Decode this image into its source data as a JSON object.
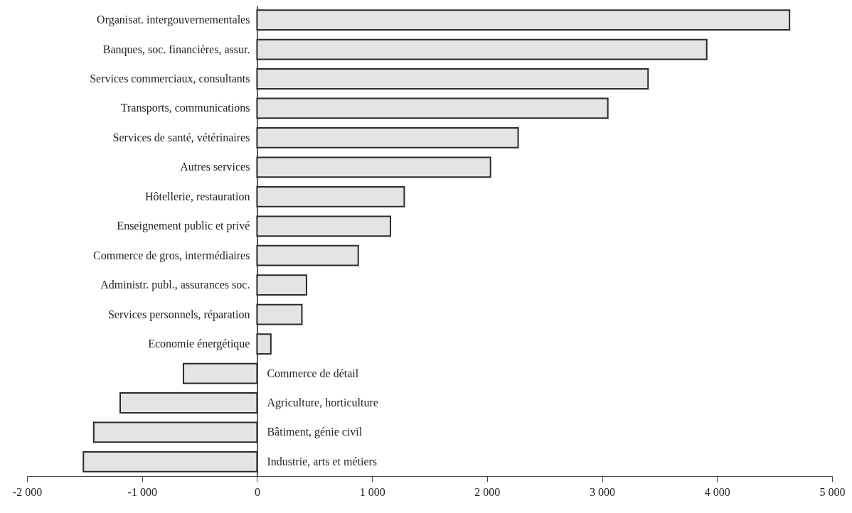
{
  "chart_data": {
    "type": "bar",
    "orientation": "horizontal",
    "categories": [
      "Organisat. intergouvernementales",
      "Banques, soc. financières, assur.",
      "Services commerciaux, consultants",
      "Transports, communications",
      "Services de santé, vétérinaires",
      "Autres services",
      "Hôtellerie, restauration",
      "Enseignement public et privé",
      "Commerce de gros, intermédiaires",
      "Administr. publ., assurances soc.",
      "Services personnels, réparation",
      "Economie énergétique",
      "Commerce de détail",
      "Agriculture, horticulture",
      "Bâtiment, génie civil",
      "Industrie, arts et métiers"
    ],
    "values": [
      4630,
      3910,
      3400,
      3050,
      2270,
      2030,
      1280,
      1160,
      880,
      430,
      390,
      120,
      -640,
      -1190,
      -1420,
      -1510
    ],
    "color": "#e4e4e4",
    "xlim": [
      -2000,
      5000
    ],
    "xticks": [
      {
        "value": -2000,
        "label": "-2 000"
      },
      {
        "value": -1000,
        "label": "-1 000"
      },
      0,
      {
        "value": 1000,
        "label": "1 000"
      },
      {
        "value": 2000,
        "label": "2 000"
      },
      {
        "value": 3000,
        "label": "3 000"
      },
      {
        "value": 4000,
        "label": "4 000"
      },
      {
        "value": 5000,
        "label": "5 000"
      }
    ],
    "grid": false
  }
}
